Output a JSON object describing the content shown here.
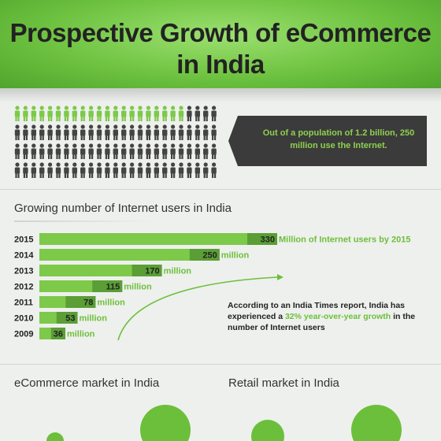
{
  "title": "Prospective Growth of eCommerce in India",
  "population_note": {
    "text": "Out of a population of 1.2 billion, 250 million use the Internet.",
    "people_total": 100,
    "people_highlighted": 21
  },
  "users_section_title": "Growing number of Internet users in India",
  "unit_label_first": "Million of Internet users by 2015",
  "unit_label": "million",
  "annotation": {
    "prefix": "According to an India Times report, India has experienced a ",
    "highlight": "32% year-over-year growth",
    "suffix": " in the number of Internet users"
  },
  "ecommerce_title": "eCommerce market in India",
  "retail_title": "Retail market in India",
  "colors": {
    "green": "#6cbf3b",
    "light_green": "#8fd04f",
    "dark_green": "#5a9e35",
    "dark": "#3a3a3a"
  },
  "chart_data": {
    "type": "bar",
    "orientation": "horizontal",
    "categories": [
      "2015",
      "2014",
      "2013",
      "2012",
      "2011",
      "2010",
      "2009"
    ],
    "values": [
      330,
      250,
      170,
      115,
      78,
      53,
      36
    ],
    "unit": "million",
    "xlim": [
      0,
      330
    ]
  }
}
